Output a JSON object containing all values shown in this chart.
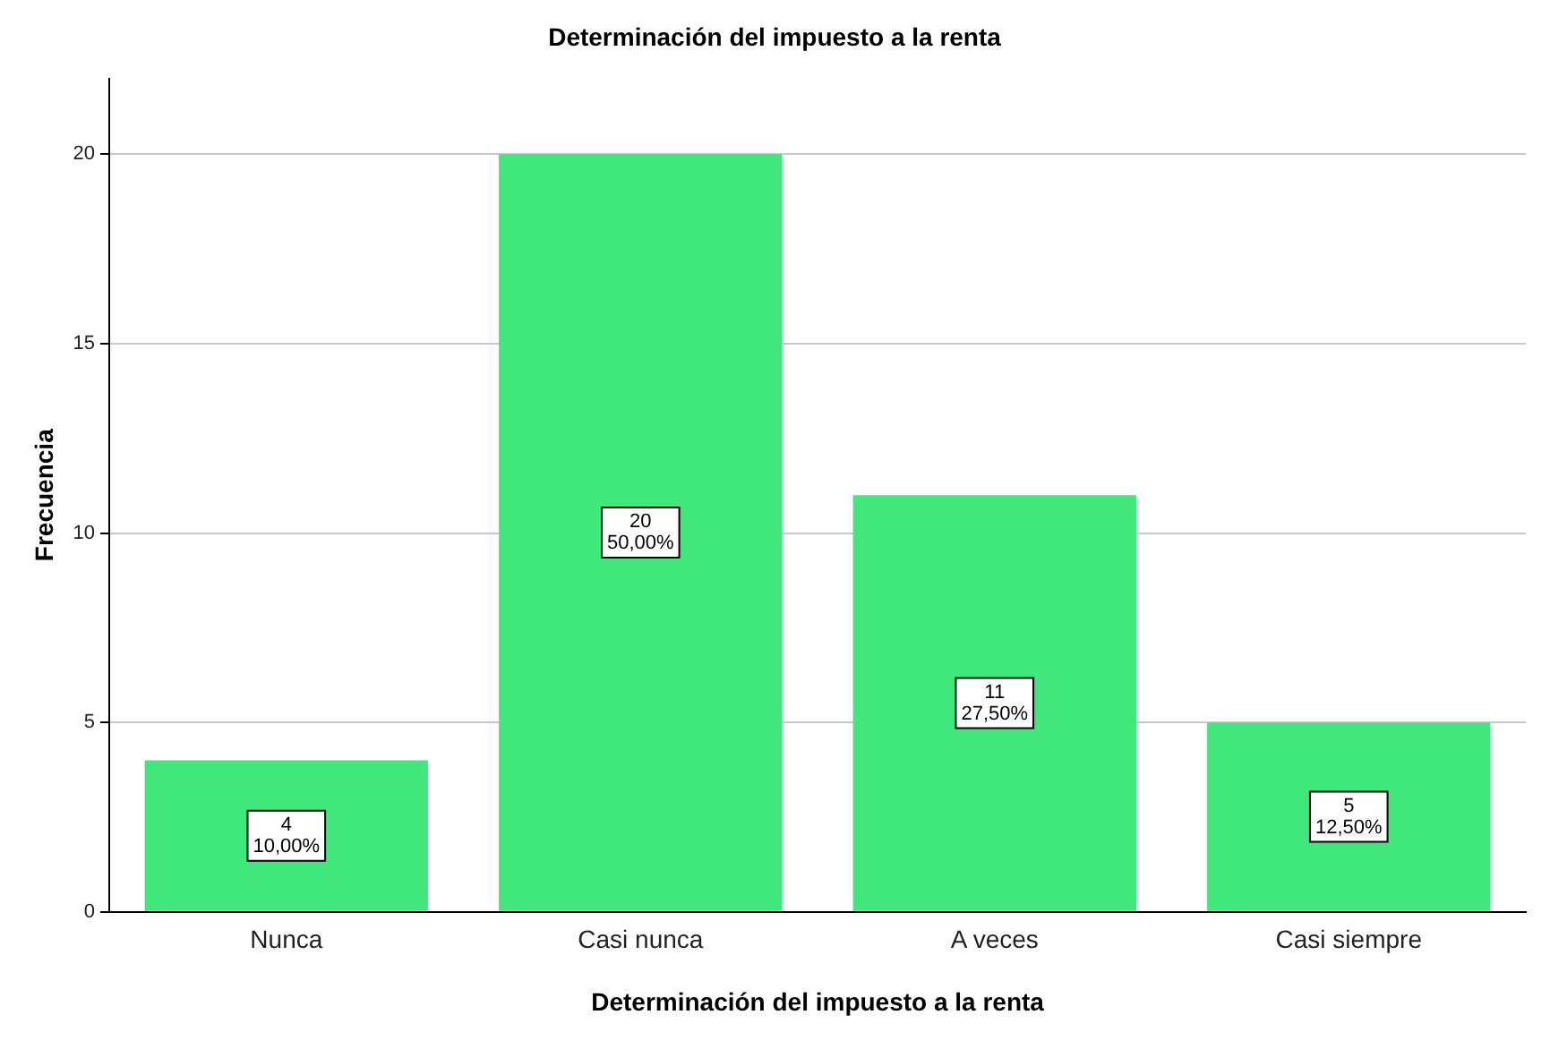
{
  "chart_data": {
    "type": "bar",
    "title": "Determinación del impuesto a la renta",
    "xlabel": "Determinación del impuesto a la renta",
    "ylabel": "Frecuencia",
    "categories": [
      "Nunca",
      "Casi nunca",
      "A veces",
      "Casi siempre"
    ],
    "values": [
      4,
      20,
      11,
      5
    ],
    "color": "#40e87c",
    "value_labels": [
      "4\n10,00%",
      "20\n50,00%",
      "11\n27,50%",
      "5\n12,50%"
    ],
    "ylim": [
      0,
      22
    ],
    "yticks": [
      0,
      5,
      10,
      15,
      20
    ],
    "grid": "y",
    "legend": false
  }
}
